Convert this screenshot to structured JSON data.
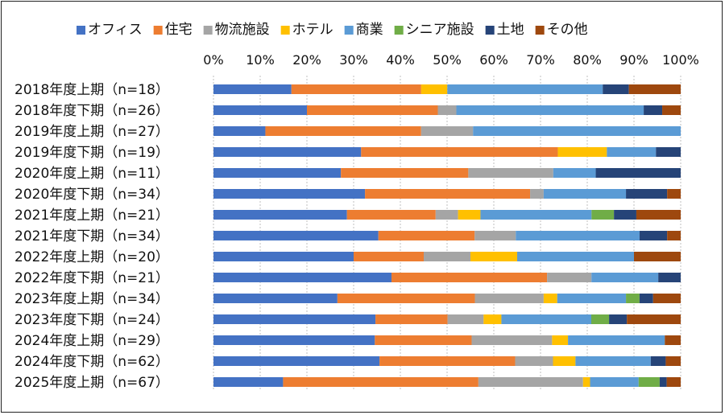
{
  "chart_data": {
    "type": "bar",
    "orientation": "horizontal",
    "stacked": true,
    "percent": true,
    "legend_position": "top",
    "xlim": [
      0,
      100
    ],
    "x_ticks": [
      "0%",
      "10%",
      "20%",
      "30%",
      "40%",
      "50%",
      "60%",
      "70%",
      "80%",
      "90%",
      "100%"
    ],
    "categories": [
      "2018年度上期（n=18）",
      "2018年度下期（n=26）",
      "2019年度上期（n=27）",
      "2019年度下期（n=19）",
      "2020年度上期（n=11）",
      "2020年度下期（n=34）",
      "2021年度上期（n=21）",
      "2021年度下期（n=34）",
      "2022年度上期（n=20）",
      "2022年度下期（n=21）",
      "2023年度上期（n=34）",
      "2023年度下期（n=24）",
      "2024年度上期（n=29）",
      "2024年度下期（n=62）",
      "2025年度上期（n=67）"
    ],
    "series": [
      {
        "name": "オフィス",
        "color": "#4472C4",
        "values": [
          16.7,
          19.2,
          11.1,
          31.6,
          27.3,
          32.4,
          28.6,
          35.3,
          30.0,
          38.1,
          26.5,
          34.6,
          34.5,
          35.5,
          14.9
        ]
      },
      {
        "name": "住宅",
        "color": "#ED7D31",
        "values": [
          27.8,
          26.9,
          33.3,
          42.1,
          27.3,
          35.3,
          19.0,
          20.6,
          15.0,
          33.3,
          29.4,
          15.4,
          20.7,
          29.0,
          41.8
        ]
      },
      {
        "name": "物流施設",
        "color": "#A5A5A5",
        "values": [
          0,
          3.8,
          11.1,
          0,
          18.2,
          2.9,
          4.8,
          8.8,
          10.0,
          9.5,
          14.7,
          7.7,
          17.2,
          8.1,
          22.4
        ]
      },
      {
        "name": "ホテル",
        "color": "#FFC000",
        "values": [
          5.6,
          0,
          0,
          10.5,
          0,
          0,
          4.8,
          0,
          10.0,
          0,
          2.9,
          3.8,
          3.4,
          4.8,
          1.5
        ]
      },
      {
        "name": "商業",
        "color": "#5B9BD5",
        "values": [
          33.3,
          38.5,
          44.4,
          10.5,
          9.1,
          17.6,
          23.8,
          26.5,
          25.0,
          14.3,
          14.7,
          19.2,
          20.7,
          16.1,
          10.4
        ]
      },
      {
        "name": "シニア施設",
        "color": "#70AD47",
        "values": [
          0,
          0,
          0,
          0,
          0,
          0,
          4.8,
          0,
          0,
          0,
          2.9,
          3.8,
          0,
          0,
          4.5
        ]
      },
      {
        "name": "土地",
        "color": "#264478",
        "values": [
          5.6,
          3.8,
          0,
          5.3,
          18.2,
          8.8,
          4.8,
          5.9,
          0,
          4.8,
          2.9,
          3.8,
          0,
          3.2,
          1.5
        ]
      },
      {
        "name": "その他",
        "color": "#9E480E",
        "values": [
          11.1,
          3.8,
          0,
          0,
          0,
          2.9,
          9.5,
          2.9,
          10.0,
          0,
          5.9,
          11.5,
          3.4,
          3.2,
          3.0
        ]
      }
    ]
  }
}
